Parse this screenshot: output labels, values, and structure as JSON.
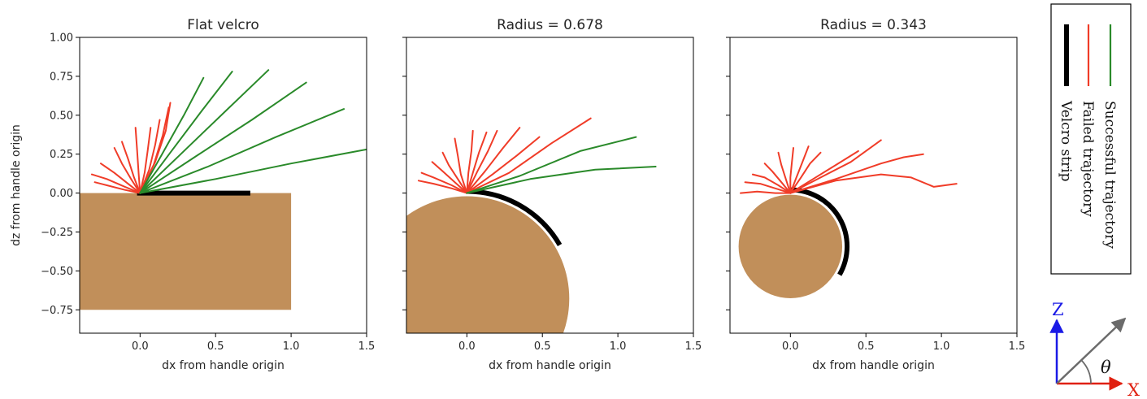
{
  "chart_data": [
    {
      "type": "line",
      "title": "Flat velcro",
      "xlabel": "dx from handle origin",
      "ylabel": "dz from handle origin",
      "xlim": [
        -0.4,
        1.5
      ],
      "ylim": [
        -0.9,
        1.0
      ],
      "xticks": [
        0.0,
        0.5,
        1.0,
        1.5
      ],
      "xtick_labels": [
        "0.0",
        "0.5",
        "1.0",
        "1.5"
      ],
      "yticks": [
        1.0,
        0.75,
        0.5,
        0.25,
        0.0,
        -0.25,
        -0.5,
        -0.75
      ],
      "ytick_labels": [
        "1.00",
        "0.75",
        "0.50",
        "0.25",
        "0.00",
        "−0.25",
        "−0.50",
        "−0.75"
      ],
      "object": {
        "shape": "rect",
        "x": [
          -0.4,
          1.0
        ],
        "y": [
          -0.75,
          0.0
        ],
        "color": "#c18f5a"
      },
      "velcro_strip": {
        "shape": "line",
        "x": [
          -0.02,
          0.73
        ],
        "y": [
          0.0,
          0.0
        ]
      },
      "failed_trajectories": [
        [
          [
            0.0,
            0.0
          ],
          [
            -0.1,
            0.02
          ],
          [
            -0.22,
            0.05
          ],
          [
            -0.3,
            0.07
          ]
        ],
        [
          [
            0.0,
            0.0
          ],
          [
            -0.1,
            0.04
          ],
          [
            -0.22,
            0.09
          ],
          [
            -0.32,
            0.12
          ]
        ],
        [
          [
            0.0,
            0.0
          ],
          [
            -0.08,
            0.06
          ],
          [
            -0.17,
            0.13
          ],
          [
            -0.26,
            0.19
          ]
        ],
        [
          [
            0.0,
            0.0
          ],
          [
            -0.06,
            0.09
          ],
          [
            -0.12,
            0.19
          ],
          [
            -0.17,
            0.29
          ]
        ],
        [
          [
            0.0,
            0.0
          ],
          [
            -0.04,
            0.1
          ],
          [
            -0.08,
            0.22
          ],
          [
            -0.12,
            0.33
          ]
        ],
        [
          [
            0.0,
            0.0
          ],
          [
            -0.01,
            0.13
          ],
          [
            -0.02,
            0.28
          ],
          [
            -0.03,
            0.42
          ]
        ],
        [
          [
            0.0,
            0.0
          ],
          [
            0.03,
            0.13
          ],
          [
            0.05,
            0.27
          ],
          [
            0.07,
            0.42
          ]
        ],
        [
          [
            0.0,
            0.0
          ],
          [
            0.06,
            0.15
          ],
          [
            0.1,
            0.31
          ],
          [
            0.13,
            0.47
          ]
        ],
        [
          [
            0.0,
            0.0
          ],
          [
            0.09,
            0.18
          ],
          [
            0.15,
            0.37
          ],
          [
            0.19,
            0.55
          ]
        ],
        [
          [
            0.0,
            0.0
          ],
          [
            0.1,
            0.2
          ],
          [
            0.17,
            0.4
          ],
          [
            0.2,
            0.58
          ]
        ]
      ],
      "successful_trajectories": [
        [
          [
            0.0,
            0.0
          ],
          [
            0.14,
            0.24
          ],
          [
            0.29,
            0.5
          ],
          [
            0.42,
            0.74
          ]
        ],
        [
          [
            0.0,
            0.0
          ],
          [
            0.2,
            0.26
          ],
          [
            0.41,
            0.53
          ],
          [
            0.61,
            0.78
          ]
        ],
        [
          [
            0.0,
            0.0
          ],
          [
            0.28,
            0.26
          ],
          [
            0.57,
            0.53
          ],
          [
            0.85,
            0.79
          ]
        ],
        [
          [
            0.0,
            0.0
          ],
          [
            0.36,
            0.23
          ],
          [
            0.74,
            0.47
          ],
          [
            1.1,
            0.71
          ]
        ],
        [
          [
            0.0,
            0.0
          ],
          [
            0.45,
            0.17
          ],
          [
            0.9,
            0.36
          ],
          [
            1.35,
            0.54
          ]
        ],
        [
          [
            0.0,
            0.0
          ],
          [
            0.5,
            0.09
          ],
          [
            1.0,
            0.19
          ],
          [
            1.5,
            0.28
          ]
        ]
      ]
    },
    {
      "type": "line",
      "title": "Radius = 0.678",
      "xlabel": "dx from handle origin",
      "ylabel": "",
      "xlim": [
        -0.4,
        1.5
      ],
      "ylim": [
        -0.9,
        1.0
      ],
      "xticks": [
        0.0,
        0.5,
        1.0,
        1.5
      ],
      "xtick_labels": [
        "0.0",
        "0.5",
        "1.0",
        "1.5"
      ],
      "yticks": [
        1.0,
        0.75,
        0.5,
        0.25,
        0.0,
        -0.25,
        -0.5,
        -0.75
      ],
      "ytick_labels": [],
      "object": {
        "shape": "circle",
        "cx": 0.0,
        "cy": -0.678,
        "r": 0.678,
        "color": "#c18f5a"
      },
      "velcro_strip": {
        "shape": "arc",
        "cx": 0.0,
        "cy": -0.678,
        "r": 0.678,
        "start_deg": 90,
        "end_deg": 30
      },
      "failed_trajectories": [
        [
          [
            0.0,
            0.0
          ],
          [
            -0.1,
            0.03
          ],
          [
            -0.22,
            0.06
          ],
          [
            -0.32,
            0.08
          ]
        ],
        [
          [
            0.0,
            0.0
          ],
          [
            -0.1,
            0.05
          ],
          [
            -0.22,
            0.1
          ],
          [
            -0.3,
            0.13
          ]
        ],
        [
          [
            0.0,
            0.0
          ],
          [
            -0.08,
            0.07
          ],
          [
            -0.16,
            0.14
          ],
          [
            -0.23,
            0.2
          ]
        ],
        [
          [
            0.0,
            0.0
          ],
          [
            -0.06,
            0.09
          ],
          [
            -0.12,
            0.18
          ],
          [
            -0.16,
            0.26
          ]
        ],
        [
          [
            0.0,
            0.0
          ],
          [
            -0.04,
            0.12
          ],
          [
            -0.06,
            0.24
          ],
          [
            -0.08,
            0.35
          ]
        ],
        [
          [
            0.0,
            0.0
          ],
          [
            0.01,
            0.13
          ],
          [
            0.03,
            0.27
          ],
          [
            0.04,
            0.4
          ]
        ],
        [
          [
            0.0,
            0.0
          ],
          [
            0.04,
            0.13
          ],
          [
            0.08,
            0.26
          ],
          [
            0.13,
            0.39
          ]
        ],
        [
          [
            0.0,
            0.0
          ],
          [
            0.07,
            0.14
          ],
          [
            0.14,
            0.27
          ],
          [
            0.2,
            0.4
          ]
        ],
        [
          [
            0.0,
            0.0
          ],
          [
            0.12,
            0.14
          ],
          [
            0.24,
            0.29
          ],
          [
            0.35,
            0.42
          ]
        ],
        [
          [
            0.0,
            0.0
          ],
          [
            0.17,
            0.12
          ],
          [
            0.33,
            0.24
          ],
          [
            0.48,
            0.36
          ]
        ],
        [
          [
            0.0,
            0.0
          ],
          [
            0.28,
            0.13
          ],
          [
            0.56,
            0.32
          ],
          [
            0.82,
            0.48
          ]
        ]
      ],
      "successful_trajectories": [
        [
          [
            0.0,
            0.0
          ],
          [
            0.35,
            0.11
          ],
          [
            0.75,
            0.27
          ],
          [
            1.12,
            0.36
          ]
        ],
        [
          [
            0.0,
            0.0
          ],
          [
            0.42,
            0.09
          ],
          [
            0.85,
            0.15
          ],
          [
            1.25,
            0.17
          ]
        ]
      ]
    },
    {
      "type": "line",
      "title": "Radius = 0.343",
      "xlabel": "dx from handle origin",
      "ylabel": "",
      "xlim": [
        -0.4,
        1.5
      ],
      "ylim": [
        -0.9,
        1.0
      ],
      "xticks": [
        0.0,
        0.5,
        1.0,
        1.5
      ],
      "xtick_labels": [
        "0.0",
        "0.5",
        "1.0",
        "1.5"
      ],
      "yticks": [
        1.0,
        0.75,
        0.5,
        0.25,
        0.0,
        -0.25,
        -0.5,
        -0.75
      ],
      "ytick_labels": [],
      "object": {
        "shape": "circle",
        "cx": 0.0,
        "cy": -0.343,
        "r": 0.343,
        "color": "#c18f5a"
      },
      "velcro_strip": {
        "shape": "arc",
        "cx": 0.0,
        "cy": -0.343,
        "r": 0.343,
        "start_deg": 90,
        "end_deg": -30
      },
      "failed_trajectories": [
        [
          [
            0.0,
            0.0
          ],
          [
            -0.1,
            0.0
          ],
          [
            -0.22,
            0.01
          ],
          [
            -0.33,
            0.0
          ]
        ],
        [
          [
            0.0,
            0.0
          ],
          [
            -0.1,
            0.03
          ],
          [
            -0.2,
            0.06
          ],
          [
            -0.3,
            0.07
          ]
        ],
        [
          [
            0.0,
            0.0
          ],
          [
            -0.08,
            0.05
          ],
          [
            -0.17,
            0.1
          ],
          [
            -0.25,
            0.12
          ]
        ],
        [
          [
            0.0,
            0.0
          ],
          [
            -0.06,
            0.07
          ],
          [
            -0.12,
            0.14
          ],
          [
            -0.17,
            0.19
          ]
        ],
        [
          [
            0.0,
            0.0
          ],
          [
            -0.03,
            0.09
          ],
          [
            -0.06,
            0.18
          ],
          [
            -0.08,
            0.26
          ]
        ],
        [
          [
            0.0,
            0.0
          ],
          [
            0.0,
            0.1
          ],
          [
            0.01,
            0.2
          ],
          [
            0.02,
            0.29
          ]
        ],
        [
          [
            0.0,
            0.0
          ],
          [
            0.04,
            0.1
          ],
          [
            0.08,
            0.2
          ],
          [
            0.12,
            0.3
          ]
        ],
        [
          [
            0.0,
            0.0
          ],
          [
            0.07,
            0.1
          ],
          [
            0.13,
            0.19
          ],
          [
            0.2,
            0.26
          ]
        ],
        [
          [
            0.0,
            0.0
          ],
          [
            0.15,
            0.09
          ],
          [
            0.3,
            0.18
          ],
          [
            0.45,
            0.27
          ]
        ],
        [
          [
            0.0,
            0.0
          ],
          [
            0.2,
            0.1
          ],
          [
            0.4,
            0.2
          ],
          [
            0.6,
            0.34
          ]
        ],
        [
          [
            0.0,
            0.0
          ],
          [
            0.3,
            0.09
          ],
          [
            0.6,
            0.19
          ],
          [
            0.75,
            0.23
          ],
          [
            0.88,
            0.25
          ]
        ],
        [
          [
            0.0,
            0.0
          ],
          [
            0.3,
            0.08
          ],
          [
            0.6,
            0.12
          ],
          [
            0.8,
            0.1
          ],
          [
            0.95,
            0.04
          ],
          [
            1.1,
            0.06
          ]
        ]
      ],
      "successful_trajectories": []
    }
  ],
  "legend": {
    "placement": "right",
    "entries": [
      {
        "label": "Successful trajectory",
        "color": "#2a8a2a"
      },
      {
        "label": "Failed trajectory",
        "color": "#f03c28"
      },
      {
        "label": "Velcro strip",
        "color": "#000000"
      }
    ]
  },
  "coordinate_diagram": {
    "z_label": "Z",
    "x_label": "X",
    "angle_label": "θ",
    "z_color": "#1a1ae6",
    "x_color": "#e02010",
    "arrow_color": "#6b6b6b"
  },
  "colors": {
    "failed": "#f03c28",
    "successful": "#2a8a2a",
    "velcro": "#000000",
    "object": "#c18f5a"
  }
}
